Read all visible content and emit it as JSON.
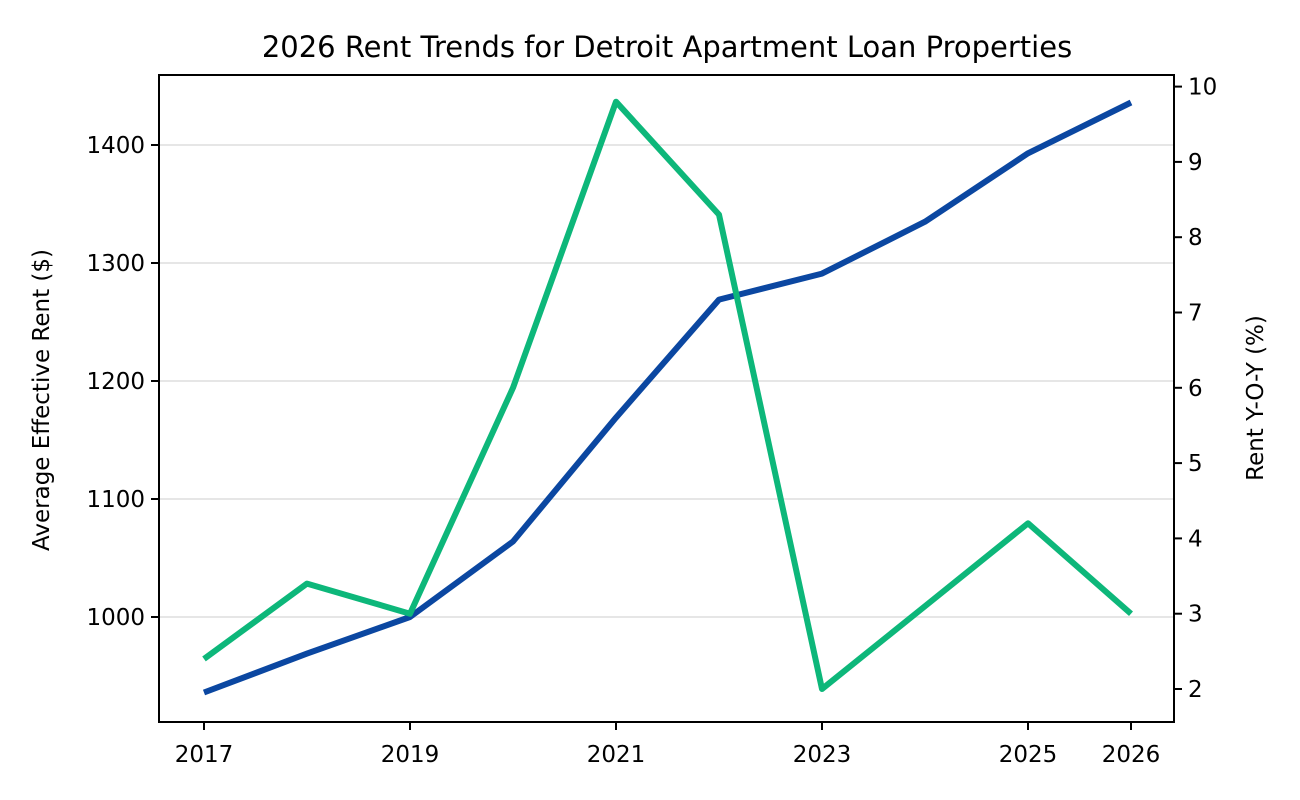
{
  "chart_data": {
    "type": "line",
    "title": "2026 Rent Trends for Detroit Apartment Loan Properties",
    "xlabel": "",
    "ylabel": "Average Effective Rent ($)",
    "y2label": "Rent Y-O-Y (%)",
    "x": [
      2017,
      2018,
      2019,
      2020,
      2021,
      2022,
      2023,
      2024,
      2025,
      2026
    ],
    "x_tick_labels": [
      "2017",
      "2019",
      "2021",
      "2023",
      "2025",
      "2026"
    ],
    "y_ticks": [
      1000,
      1100,
      1200,
      1300,
      1400
    ],
    "y2_ticks": [
      2,
      3,
      4,
      5,
      6,
      7,
      8,
      9,
      10
    ],
    "ylim": [
      906,
      1457
    ],
    "y2lim": [
      1.6,
      10.2
    ],
    "grid": "horizontal",
    "legend": "none",
    "series": [
      {
        "name": "Average Effective Rent",
        "axis": "left",
        "color": "#0B47A1",
        "values": [
          936,
          969,
          1000,
          1064,
          1169,
          1269,
          1291,
          1335,
          1393,
          1436
        ]
      },
      {
        "name": "Rent Y-O-Y",
        "axis": "right",
        "color": "#0DB77A",
        "values": [
          2.4,
          3.4,
          3.0,
          6.0,
          9.8,
          8.3,
          2.0,
          3.1,
          4.2,
          3.0
        ]
      }
    ]
  }
}
